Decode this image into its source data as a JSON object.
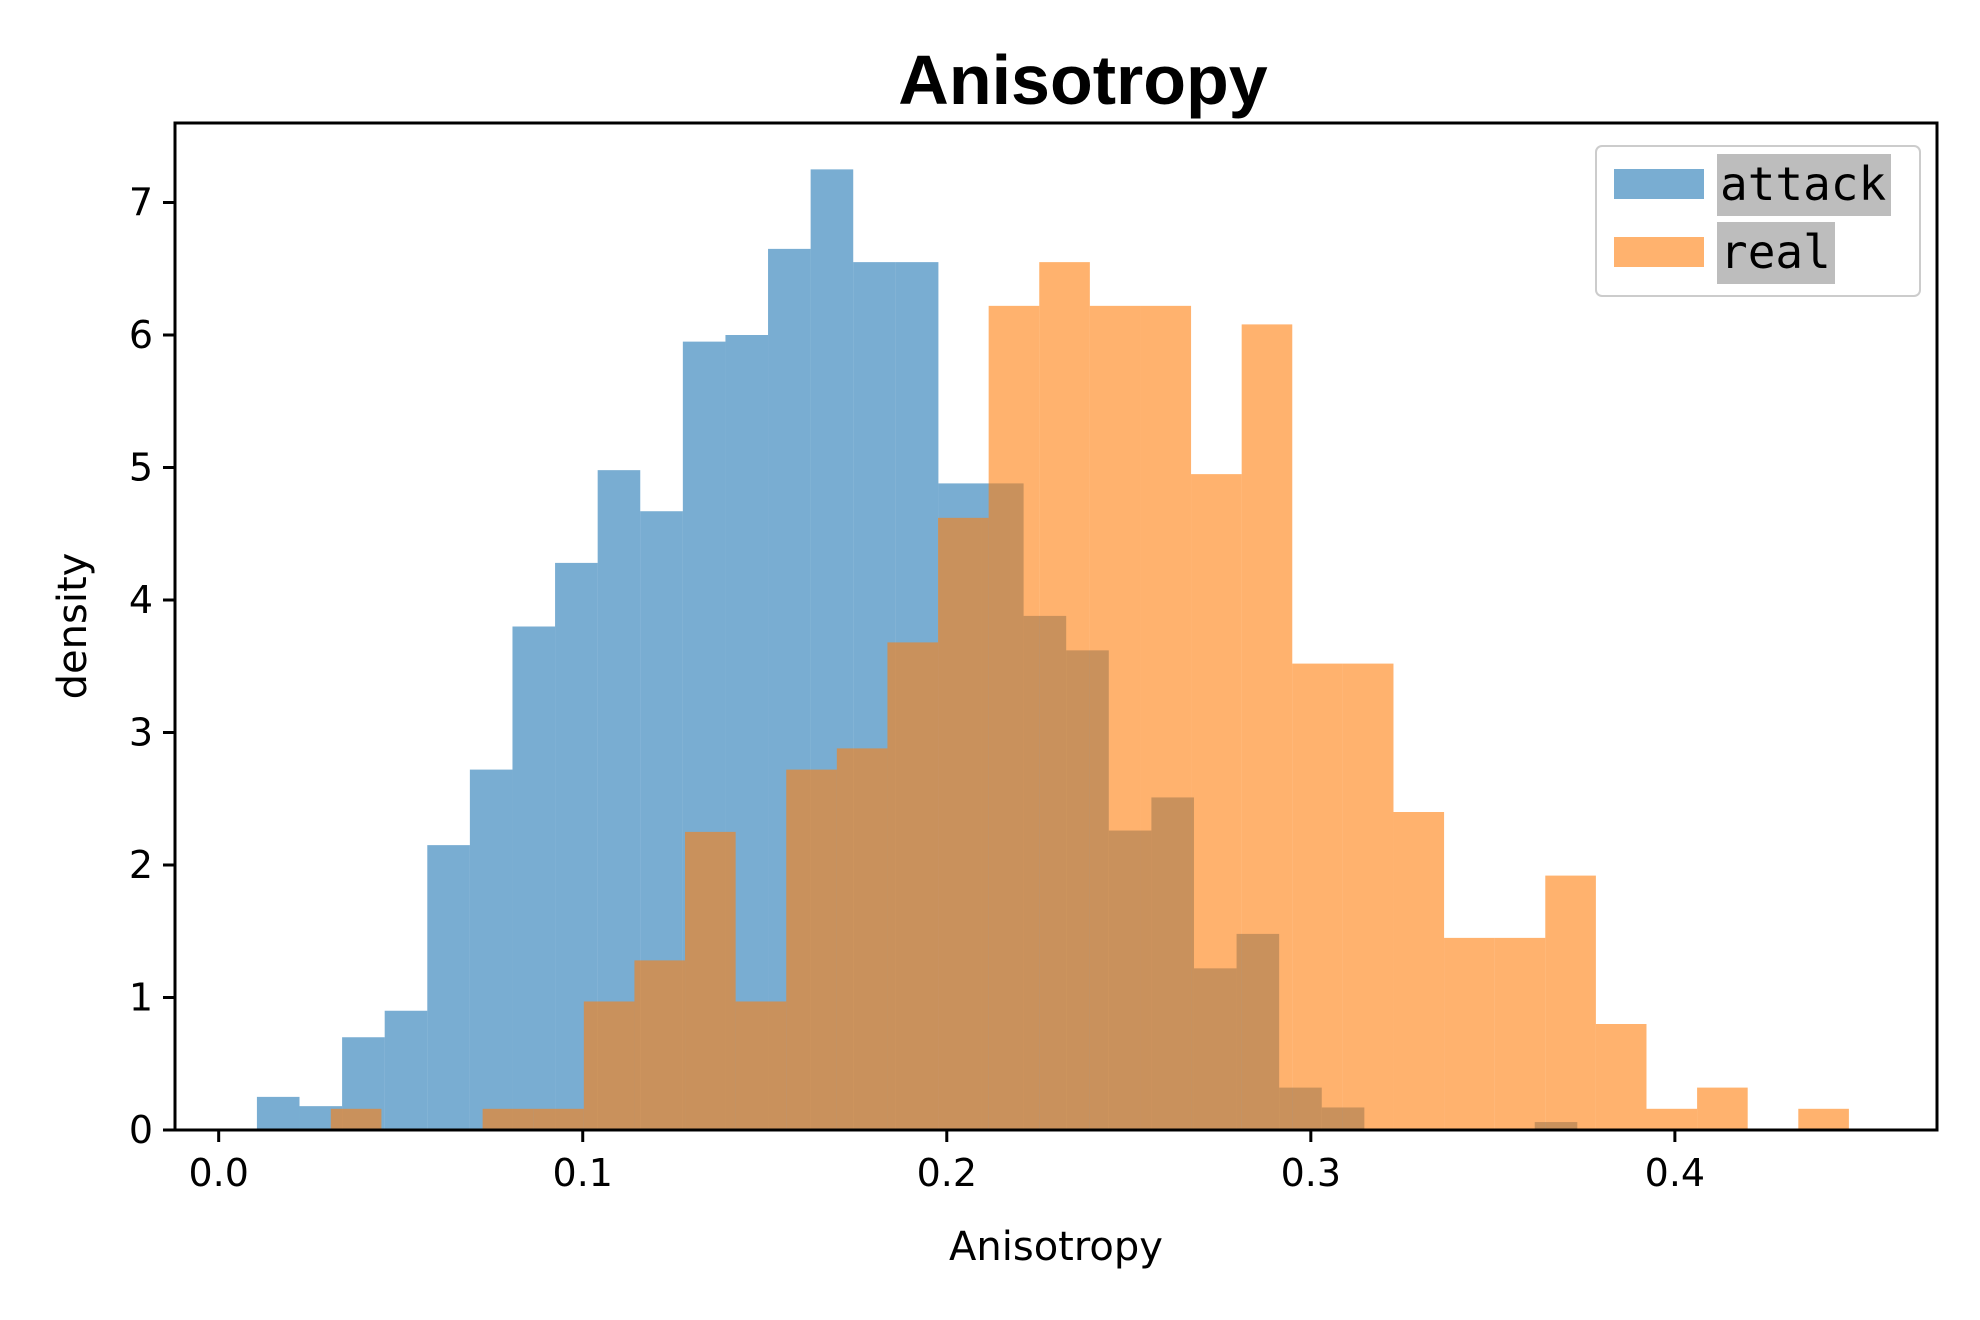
{
  "chart_data": {
    "type": "bar",
    "title": "Anisotropy",
    "xlabel": "Anisotropy",
    "ylabel": "density",
    "xlim": [
      -0.012,
      0.472
    ],
    "ylim": [
      0,
      7.6
    ],
    "xticks": [
      0.0,
      0.1,
      0.2,
      0.3,
      0.4
    ],
    "xtick_labels": [
      "0.0",
      "0.1",
      "0.2",
      "0.3",
      "0.4"
    ],
    "yticks": [
      0,
      1,
      2,
      3,
      4,
      5,
      6,
      7
    ],
    "ytick_labels": [
      "0",
      "1",
      "2",
      "3",
      "4",
      "5",
      "6",
      "7"
    ],
    "grid": false,
    "legend_position": "top-right",
    "series": [
      {
        "name": "attack",
        "color": "#1f77b4",
        "opacity": 0.6,
        "bin_edges": [
          0.0105,
          0.0222,
          0.0339,
          0.0456,
          0.0573,
          0.069,
          0.0807,
          0.0924,
          0.1041,
          0.1158,
          0.1275,
          0.1392,
          0.1509,
          0.1626,
          0.1743,
          0.186,
          0.1977,
          0.2094,
          0.2211,
          0.2328,
          0.2445,
          0.2562,
          0.2679,
          0.2796,
          0.2913,
          0.303,
          0.3147,
          0.3264,
          0.3381,
          0.3498,
          0.3615,
          0.3732
        ],
        "values": [
          0.25,
          0.18,
          0.7,
          0.9,
          2.15,
          2.72,
          3.8,
          4.28,
          4.98,
          4.67,
          5.95,
          6.0,
          6.65,
          7.25,
          6.55,
          6.55,
          4.88,
          4.88,
          3.88,
          3.62,
          2.26,
          2.51,
          1.22,
          1.48,
          0.32,
          0.17,
          0,
          0,
          0,
          0,
          0.06
        ]
      },
      {
        "name": "real",
        "color": "#ff7f0e",
        "opacity": 0.6,
        "bin_edges": [
          0.0308,
          0.0447,
          0.0586,
          0.0725,
          0.0864,
          0.1003,
          0.1142,
          0.1281,
          0.142,
          0.1559,
          0.1698,
          0.1837,
          0.1976,
          0.2115,
          0.2254,
          0.2393,
          0.2532,
          0.2671,
          0.281,
          0.2949,
          0.3088,
          0.3227,
          0.3366,
          0.3505,
          0.3644,
          0.3783,
          0.3922,
          0.4061,
          0.42,
          0.4339,
          0.4478
        ],
        "values": [
          0.16,
          0,
          0,
          0.16,
          0.16,
          0.97,
          1.28,
          2.25,
          0.97,
          2.72,
          2.88,
          3.68,
          4.62,
          6.22,
          6.55,
          6.22,
          6.22,
          4.95,
          6.08,
          3.52,
          3.52,
          2.4,
          1.45,
          1.45,
          1.92,
          0.8,
          0.16,
          0.32,
          0,
          0.16
        ]
      }
    ]
  }
}
